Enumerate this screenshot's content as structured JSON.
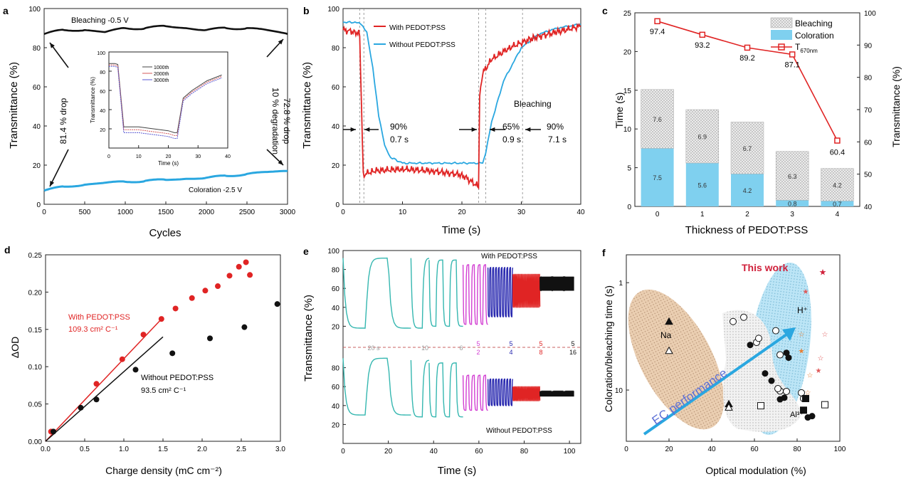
{
  "colors": {
    "red": "#e02424",
    "blue": "#2aa7e0",
    "black": "#111111",
    "gray": "#999999",
    "hatch": "#cfcfcf",
    "lightblue": "#7fd0ef",
    "tan": "#d9b48f",
    "purple": "#9b3fc4",
    "teal": "#35b7b0",
    "navy": "#2a2ab0",
    "magenta": "#d23fd2"
  },
  "chart_data": [
    {
      "panel": "a",
      "type": "line",
      "xlabel": "Cycles",
      "ylabel": "Transmittance (%)",
      "xlim": [
        0,
        3000
      ],
      "ylim": [
        0,
        100
      ],
      "xticks": [
        "0",
        "500",
        "1000",
        "1500",
        "2000",
        "2500",
        "3000"
      ],
      "yticks": [
        "0",
        "20",
        "40",
        "60",
        "80",
        "100"
      ],
      "series": [
        {
          "name": "Bleaching -0.5 V",
          "x": [
            0,
            250,
            500,
            750,
            1000,
            1250,
            1500,
            1750,
            2000,
            2250,
            2500,
            2750,
            3000
          ],
          "y": [
            87,
            89,
            89,
            88,
            90,
            90,
            91,
            90,
            89,
            90,
            90,
            89,
            87
          ]
        },
        {
          "name": "Coloration -2.5 V",
          "x": [
            0,
            250,
            500,
            750,
            1000,
            1250,
            1500,
            1750,
            2000,
            2250,
            2500,
            2750,
            3000
          ],
          "y": [
            7,
            9,
            10,
            11,
            11.5,
            12,
            12.5,
            13,
            13.5,
            14.5,
            15.5,
            16.5,
            17
          ]
        }
      ],
      "annotations": [
        "81.4 % drop",
        "10 % degradation",
        "72.8 % drop"
      ],
      "inset": {
        "xlabel": "Time (s)",
        "ylabel": "Transmittance (%)",
        "xlim": [
          0,
          40
        ],
        "ylim": [
          0,
          100
        ],
        "xticks": [
          "0",
          "10",
          "20",
          "30",
          "40"
        ],
        "yticks": [
          "20",
          "40",
          "60",
          "80",
          "100"
        ],
        "legend": [
          "1000th",
          "2000th",
          "3000th"
        ]
      }
    },
    {
      "panel": "b",
      "type": "line",
      "xlabel": "Time (s)",
      "ylabel": "Transmittance (%)",
      "xlim": [
        0,
        40
      ],
      "ylim": [
        0,
        100
      ],
      "xticks": [
        "0",
        "10",
        "20",
        "30",
        "40"
      ],
      "yticks": [
        "0",
        "20",
        "40",
        "60",
        "80",
        "100"
      ],
      "series": [
        {
          "name": "With PEDOT:PSS",
          "x": [
            0,
            2,
            2.8,
            3.4,
            5,
            10,
            15,
            20,
            22.8,
            23,
            23.5,
            25,
            28,
            32,
            36,
            40
          ],
          "y": [
            89,
            88,
            87,
            15,
            17,
            18,
            17,
            15,
            9,
            55,
            67,
            74,
            80,
            85,
            88,
            91
          ]
        },
        {
          "name": "Without PEDOT:PSS",
          "x": [
            0,
            2,
            3,
            4,
            5,
            6,
            7,
            8,
            10,
            15,
            20,
            23.5,
            24,
            25,
            27,
            30,
            33,
            36,
            40
          ],
          "y": [
            93,
            93,
            92,
            88,
            70,
            45,
            30,
            24,
            21,
            21,
            21,
            21,
            26,
            42,
            63,
            80,
            87,
            90,
            92
          ]
        }
      ],
      "annotations": [
        "90%",
        "0.7 s",
        "65%",
        "0.9 s",
        "90%",
        "7.1 s",
        "Bleaching"
      ]
    },
    {
      "panel": "c",
      "type": "bar",
      "xlabel": "Thickness of PEDOT:PSS",
      "ylabel": "Time (s)",
      "y2label": "Transmittance (%)",
      "categories": [
        "0",
        "1",
        "2",
        "3",
        "4"
      ],
      "ylim": [
        0,
        25
      ],
      "y2lim": [
        40,
        100
      ],
      "yticks": [
        "0",
        "5",
        "10",
        "15",
        "20",
        "25"
      ],
      "y2ticks": [
        "40",
        "50",
        "60",
        "70",
        "80",
        "90",
        "100"
      ],
      "series": [
        {
          "name": "Bleaching",
          "values": [
            7.6,
            6.9,
            6.7,
            6.3,
            4.2
          ],
          "labels": [
            "7.6",
            "6.9",
            "6.7",
            "6.3",
            "4.2"
          ]
        },
        {
          "name": "Coloration",
          "values": [
            7.5,
            5.6,
            4.2,
            0.8,
            0.7
          ],
          "labels": [
            "7.5",
            "5.6",
            "4.2",
            "0.8",
            "0.7"
          ]
        },
        {
          "name": "T",
          "axis": "right",
          "values": [
            97.4,
            93.2,
            89.2,
            87.1,
            60.4
          ],
          "labels": [
            "97.4",
            "93.2",
            "89.2",
            "87.1",
            "60.4"
          ]
        }
      ],
      "legend": [
        "Bleaching",
        "Coloration",
        "T"
      ],
      "legend_sub": "670nm"
    },
    {
      "panel": "d",
      "type": "scatter",
      "xlabel": "Charge density (mC cm⁻²)",
      "ylabel": "ΔOD",
      "xlim": [
        0,
        3.0
      ],
      "ylim": [
        0,
        0.25
      ],
      "xticks": [
        "0.0",
        "0.5",
        "1.0",
        "1.5",
        "2.0",
        "2.5",
        "3.0"
      ],
      "yticks": [
        "0.00",
        "0.05",
        "0.10",
        "0.15",
        "0.20",
        "0.25"
      ],
      "series": [
        {
          "name": "With PEDOT:PSS",
          "x": [
            0.07,
            0.65,
            0.98,
            1.25,
            1.48,
            1.66,
            1.87,
            2.04,
            2.2,
            2.35,
            2.47,
            2.56,
            2.61
          ],
          "y": [
            0.013,
            0.077,
            0.11,
            0.143,
            0.164,
            0.178,
            0.192,
            0.202,
            0.208,
            0.222,
            0.234,
            0.24,
            0.223
          ]
        },
        {
          "name": "Without PEDOT:PSS",
          "x": [
            0.1,
            0.45,
            0.65,
            1.15,
            1.62,
            2.1,
            2.54,
            2.96
          ],
          "y": [
            0.013,
            0.045,
            0.056,
            0.096,
            0.118,
            0.138,
            0.153,
            0.184
          ]
        }
      ],
      "fits": [
        {
          "series": "With PEDOT:PSS",
          "from": [
            0.0,
            0.0
          ],
          "to": [
            1.5,
            0.166
          ]
        },
        {
          "series": "Without PEDOT:PSS",
          "from": [
            0.0,
            0.0
          ],
          "to": [
            1.5,
            0.14
          ]
        }
      ],
      "annotations": [
        "With PEDOT:PSS",
        "109.3 cm² C⁻¹",
        "Without PEDOT:PSS",
        "93.5 cm² C⁻¹"
      ]
    },
    {
      "panel": "e",
      "type": "line",
      "xlabel": "Time (s)",
      "ylabel": "Transmittance (%)",
      "xlim": [
        0,
        105
      ],
      "xticks": [
        "0",
        "20",
        "40",
        "60",
        "80",
        "100"
      ],
      "yticks_top": [
        "20",
        "40",
        "60",
        "80",
        "100"
      ],
      "yticks_bottom": [
        "20",
        "40",
        "60",
        "80"
      ],
      "labels_top": "With PEDOT:PSS",
      "labels_bottom": "Without PEDOT:PSS",
      "segments": [
        {
          "name": "20 s",
          "x0": 0,
          "x1": 30,
          "period": 20,
          "color": "teal"
        },
        {
          "name": "10",
          "x0": 30,
          "x1": 38,
          "period": 10,
          "color": "teal"
        },
        {
          "name": "6",
          "x0": 38,
          "x1": 53,
          "period": 6,
          "color": "teal"
        },
        {
          "name": "5/2",
          "x0": 53,
          "x1": 64,
          "period": 2.5,
          "color": "magenta"
        },
        {
          "name": "5/4",
          "x0": 64,
          "x1": 75,
          "period": 1.25,
          "color": "navy"
        },
        {
          "name": "5/8",
          "x0": 75,
          "x1": 87,
          "period": 0.625,
          "color": "red"
        },
        {
          "name": "5/16",
          "x0": 87,
          "x1": 102,
          "period": 0.3125,
          "color": "black"
        }
      ],
      "segment_labels": [
        "20 s",
        "10",
        "6",
        "5",
        "2",
        "5",
        "4",
        "5",
        "8",
        "5",
        "16"
      ]
    },
    {
      "panel": "f",
      "type": "scatter",
      "xlabel": "Optical modulation (%)",
      "ylabel": "Coloration/bleaching time (s)",
      "xlim": [
        0,
        100
      ],
      "xticks": [
        "0",
        "20",
        "40",
        "60",
        "80",
        "100"
      ],
      "yticks": [
        "1",
        "10"
      ],
      "y_scale": "log",
      "annotations": [
        "This work",
        "H⁺",
        "Na",
        "Al³⁺",
        "EC performance"
      ],
      "points": [
        {
          "group": "This work",
          "x": [
            92
          ],
          "y": [
            0.8
          ]
        },
        {
          "group": "H+",
          "x": [
            84,
            82,
            93,
            82,
            91,
            86,
            90,
            85
          ],
          "y": [
            1.2,
            3.0,
            3.0,
            4.3,
            5.0,
            7.2,
            6.5,
            10.5
          ]
        },
        {
          "group": "Na",
          "x": [
            20,
            20,
            48,
            48
          ],
          "y": [
            2.3,
            4.3,
            13.5,
            14.5
          ]
        },
        {
          "group": "Other open",
          "x": [
            50,
            55,
            61,
            62,
            70,
            72,
            75,
            82,
            72,
            71,
            83
          ],
          "y": [
            2.3,
            2.1,
            3.6,
            3.3,
            2.8,
            4.7,
            10.3,
            10.6,
            10.2,
            9.7,
            12.0
          ]
        },
        {
          "group": "Other filled",
          "x": [
            58,
            65,
            68,
            76,
            75,
            72,
            74,
            87,
            85
          ],
          "y": [
            3.8,
            7.0,
            8.2,
            5.0,
            4.5,
            12.2,
            11.8,
            17.5,
            18.0
          ]
        },
        {
          "group": "Al3+",
          "x": [
            63,
            84,
            93,
            83
          ],
          "y": [
            14.0,
            12.0,
            13.7,
            15.4
          ]
        }
      ]
    }
  ],
  "panel_letters": [
    "a",
    "b",
    "c",
    "d",
    "e",
    "f"
  ]
}
